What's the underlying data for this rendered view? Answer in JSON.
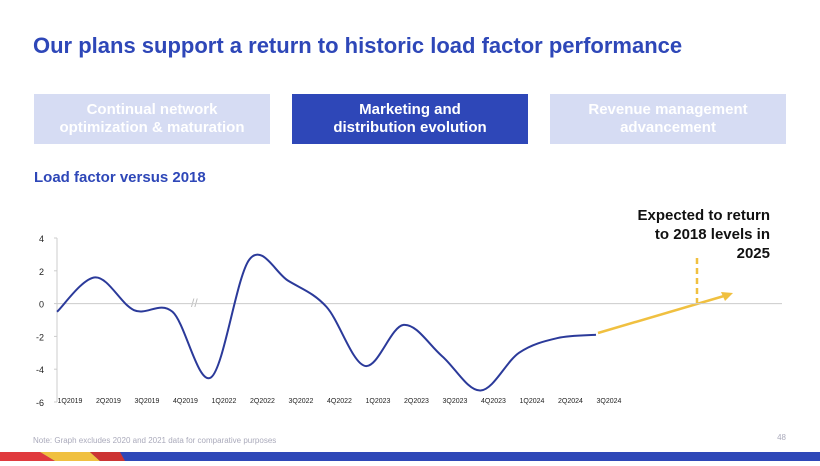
{
  "header": {
    "title": "Our plans support a return to historic load factor performance"
  },
  "tiles": [
    "Continual network optimization & maturation",
    "Marketing and distribution evolution",
    "Revenue management advancement"
  ],
  "chart_data": {
    "type": "line",
    "title": "Load factor versus 2018",
    "categories": [
      "1Q2019",
      "2Q2019",
      "3Q2019",
      "4Q2019",
      "1Q2022",
      "2Q2022",
      "3Q2022",
      "4Q2022",
      "1Q2023",
      "2Q2023",
      "3Q2023",
      "4Q2023",
      "1Q2024",
      "2Q2024",
      "3Q2024"
    ],
    "series": [
      {
        "name": "Load factor versus 2018",
        "color": "#2b3a9a",
        "values": [
          -0.5,
          1.6,
          -0.4,
          -0.5,
          -4.5,
          2.7,
          1.4,
          -0.2,
          -3.8,
          -1.3,
          -3.2,
          -5.3,
          -3.0,
          -2.1,
          -1.9
        ]
      }
    ],
    "ylim": [
      -6,
      4
    ],
    "yticks": [
      -6,
      -4,
      -2,
      0,
      2,
      4
    ],
    "annotation": "Expected to return to 2018 levels in 2025"
  },
  "footer": {
    "note": "Note: Graph excludes 2020 and 2021 data for comparative purposes",
    "page": "48"
  }
}
